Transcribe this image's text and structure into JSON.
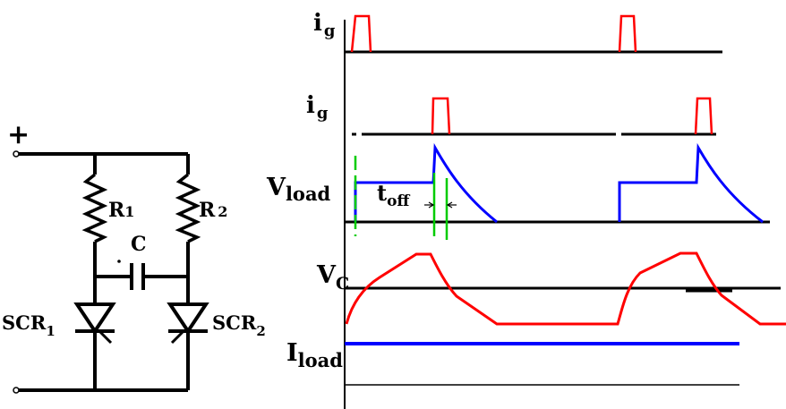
{
  "circuit": {
    "plus_sign": "+",
    "r1": {
      "name": "R",
      "sub": "1"
    },
    "r2": {
      "name": "R",
      "sub": "2"
    },
    "capacitor": "C",
    "scr1": {
      "name": "SCR",
      "sub": "1"
    },
    "scr2": {
      "name": "SCR",
      "sub": "2"
    }
  },
  "waveforms": {
    "ig1": {
      "name": "i",
      "sub": "g"
    },
    "ig2": {
      "name": "i",
      "sub": "g"
    },
    "vload": {
      "name": "V",
      "sub": "load"
    },
    "toff": {
      "name": "t",
      "sub": "off"
    },
    "vc": {
      "name": "V",
      "sub": "C"
    },
    "iload": {
      "name": "I",
      "sub": "load"
    }
  },
  "colors": {
    "gate_pulse": "#ff0000",
    "vload_trace": "#0000ff",
    "vc_trace": "#ff0000",
    "iload_trace": "#0000ff",
    "marker": "#00cc00",
    "wire": "#000000"
  }
}
